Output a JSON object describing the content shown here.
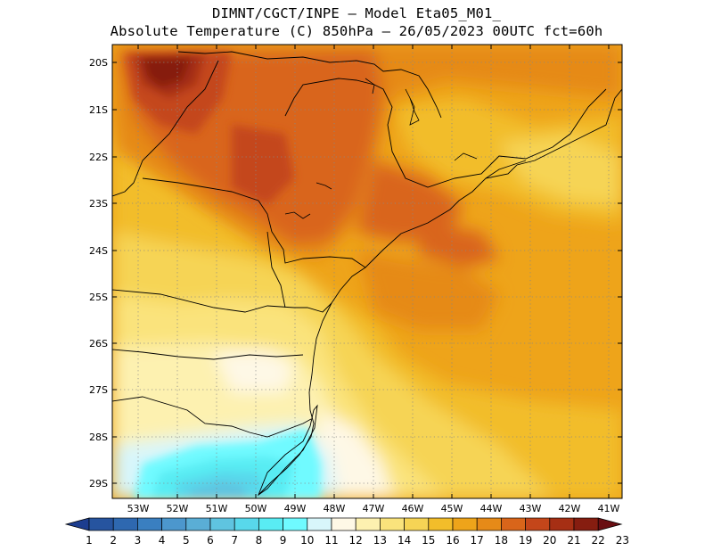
{
  "title": {
    "line1": "DIMNT/CGCT/INPE –  Model Eta05_M01_",
    "line2": "Absolute Temperature (C) 850hPa –  26/05/2023 00UTC fct=60h"
  },
  "map": {
    "lat_labels": [
      "20S",
      "21S",
      "22S",
      "23S",
      "24S",
      "25S",
      "26S",
      "27S",
      "28S",
      "29S"
    ],
    "lon_labels": [
      "53W",
      "52W",
      "51W",
      "50W",
      "49W",
      "48W",
      "47W",
      "46W",
      "45W",
      "44W",
      "43W",
      "42W",
      "41W"
    ],
    "lat_range": [
      -29.4,
      -19.8
    ],
    "lon_range": [
      -53.6,
      -40.6
    ],
    "grid": "dotted"
  },
  "colorbar": {
    "labels": [
      "1",
      "2",
      "3",
      "4",
      "5",
      "6",
      "7",
      "8",
      "9",
      "10",
      "11",
      "12",
      "13",
      "14",
      "15",
      "16",
      "17",
      "18",
      "19",
      "20",
      "21",
      "22",
      "23"
    ],
    "colors": [
      "#1c3d8f",
      "#26549f",
      "#2e68b0",
      "#3a7fc0",
      "#4c97cd",
      "#5aaed6",
      "#5fc4e0",
      "#58d8eb",
      "#59ecf3",
      "#6ffaff",
      "#d8f6fb",
      "#fef8e6",
      "#fdf1b0",
      "#fae37c",
      "#f6d455",
      "#f2bd2a",
      "#eea41a",
      "#e68a18",
      "#d9651a",
      "#c4461a",
      "#a62f14",
      "#861d10",
      "#6a0e12"
    ]
  }
}
